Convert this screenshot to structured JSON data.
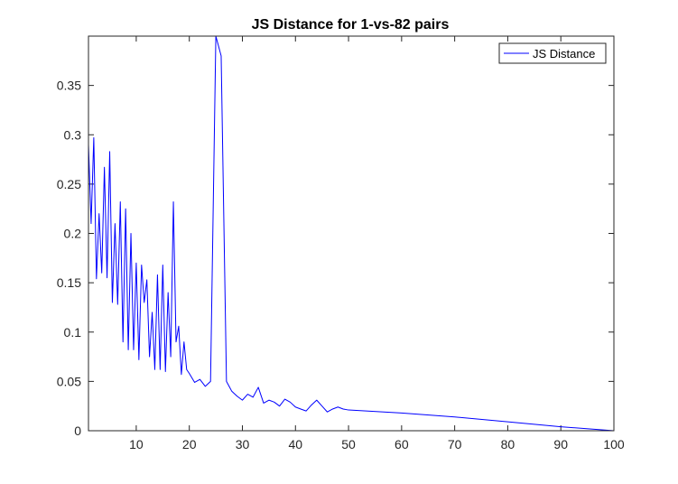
{
  "chart_data": {
    "type": "line",
    "title": "JS Distance for 1-vs-82 pairs",
    "xlabel": "",
    "ylabel": "",
    "xlim": [
      1,
      100
    ],
    "ylim": [
      0,
      0.4
    ],
    "xticks": [
      10,
      20,
      30,
      40,
      50,
      60,
      70,
      80,
      90,
      100
    ],
    "yticks": [
      0,
      0.05,
      0.1,
      0.15,
      0.2,
      0.25,
      0.3,
      0.35
    ],
    "ytick_labels": [
      "0",
      "0.05",
      "0.1",
      "0.15",
      "0.2",
      "0.25",
      "0.3",
      "0.35"
    ],
    "grid": false,
    "legend_position": "top-right",
    "series": [
      {
        "name": "JS Distance",
        "color": "#0000ff",
        "x": [
          1,
          1.5,
          2,
          2.5,
          3,
          3.5,
          4,
          4.5,
          5,
          5.5,
          6,
          6.5,
          7,
          7.5,
          8,
          8.5,
          9,
          9.5,
          10,
          10.5,
          11,
          11.5,
          12,
          12.5,
          13,
          13.5,
          14,
          14.5,
          15,
          15.5,
          16,
          16.5,
          17,
          17.5,
          18,
          18.5,
          19,
          19.5,
          20,
          21,
          22,
          23,
          24,
          25,
          26,
          27,
          28,
          29,
          30,
          31,
          32,
          33,
          34,
          35,
          36,
          37,
          38,
          39,
          40,
          41,
          42,
          43,
          44,
          45,
          46,
          47,
          48,
          49,
          50,
          60,
          70,
          80,
          90,
          100
        ],
        "values": [
          0.29,
          0.21,
          0.297,
          0.154,
          0.22,
          0.16,
          0.267,
          0.155,
          0.283,
          0.13,
          0.21,
          0.128,
          0.232,
          0.09,
          0.225,
          0.082,
          0.2,
          0.082,
          0.17,
          0.072,
          0.168,
          0.13,
          0.153,
          0.075,
          0.12,
          0.062,
          0.158,
          0.062,
          0.168,
          0.06,
          0.14,
          0.075,
          0.232,
          0.09,
          0.106,
          0.057,
          0.09,
          0.062,
          0.058,
          0.049,
          0.052,
          0.045,
          0.05,
          0.4,
          0.38,
          0.05,
          0.04,
          0.035,
          0.031,
          0.037,
          0.034,
          0.044,
          0.028,
          0.031,
          0.029,
          0.025,
          0.032,
          0.029,
          0.024,
          0.022,
          0.02,
          0.026,
          0.031,
          0.025,
          0.019,
          0.022,
          0.024,
          0.022,
          0.021,
          0.018,
          0.014,
          0.009,
          0.004,
          0.0
        ]
      }
    ]
  }
}
